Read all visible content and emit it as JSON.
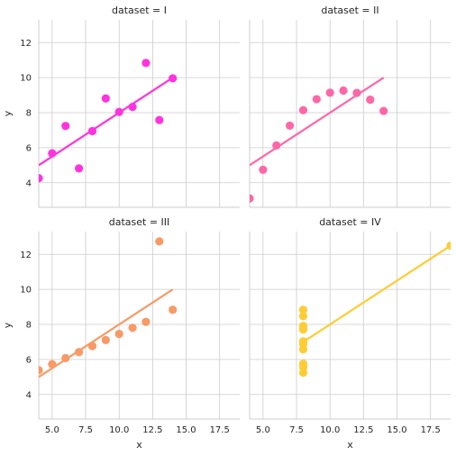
{
  "chart_data": [
    {
      "type": "scatter",
      "title": "dataset = I",
      "xlabel": "",
      "ylabel": "y",
      "xlim": [
        4,
        19
      ],
      "ylim": [
        2.6,
        13.3
      ],
      "color": "#ff33dd",
      "x": [
        10,
        8,
        13,
        9,
        11,
        14,
        6,
        4,
        12,
        7,
        5
      ],
      "y": [
        8.04,
        6.95,
        7.58,
        8.81,
        8.33,
        9.96,
        7.24,
        4.26,
        10.84,
        4.82,
        5.68
      ],
      "fit": [
        [
          4,
          5.0
        ],
        [
          14,
          10.0
        ]
      ]
    },
    {
      "type": "scatter",
      "title": "dataset = II",
      "xlabel": "",
      "ylabel": "",
      "xlim": [
        4,
        19
      ],
      "ylim": [
        2.6,
        13.3
      ],
      "color": "#ff66a8",
      "x": [
        10,
        8,
        13,
        9,
        11,
        14,
        6,
        4,
        12,
        7,
        5
      ],
      "y": [
        9.14,
        8.14,
        8.74,
        8.77,
        9.26,
        8.1,
        6.13,
        3.1,
        9.13,
        7.26,
        4.74
      ],
      "fit": [
        [
          4,
          5.0
        ],
        [
          14,
          10.0
        ]
      ]
    },
    {
      "type": "scatter",
      "title": "dataset = III",
      "xlabel": "x",
      "ylabel": "y",
      "xlim": [
        4,
        19
      ],
      "ylim": [
        2.6,
        13.3
      ],
      "color": "#f79a66",
      "x": [
        10,
        8,
        13,
        9,
        11,
        14,
        6,
        4,
        12,
        7,
        5
      ],
      "y": [
        7.46,
        6.77,
        12.74,
        7.11,
        7.81,
        8.84,
        6.08,
        5.39,
        8.15,
        6.42,
        5.73
      ],
      "fit": [
        [
          4,
          5.0
        ],
        [
          14,
          10.0
        ]
      ]
    },
    {
      "type": "scatter",
      "title": "dataset = IV",
      "xlabel": "x",
      "ylabel": "",
      "xlim": [
        4,
        19
      ],
      "ylim": [
        2.6,
        13.3
      ],
      "color": "#ffcc33",
      "x": [
        8,
        8,
        8,
        8,
        8,
        8,
        8,
        19,
        8,
        8,
        8
      ],
      "y": [
        6.58,
        5.76,
        7.71,
        8.84,
        8.47,
        7.04,
        5.25,
        12.5,
        5.56,
        7.91,
        6.89
      ],
      "fit": [
        [
          8,
          7.0
        ],
        [
          19,
          12.5
        ]
      ]
    }
  ],
  "axes": {
    "x_ticks": [
      5.0,
      7.5,
      10.0,
      12.5,
      15.0,
      17.5
    ],
    "x_tick_labels": [
      "5.0",
      "7.5",
      "10.0",
      "12.5",
      "15.0",
      "17.5"
    ],
    "y_ticks": [
      4,
      6,
      8,
      10,
      12
    ],
    "y_tick_labels": [
      "4",
      "6",
      "8",
      "10",
      "12"
    ],
    "grid": true
  }
}
